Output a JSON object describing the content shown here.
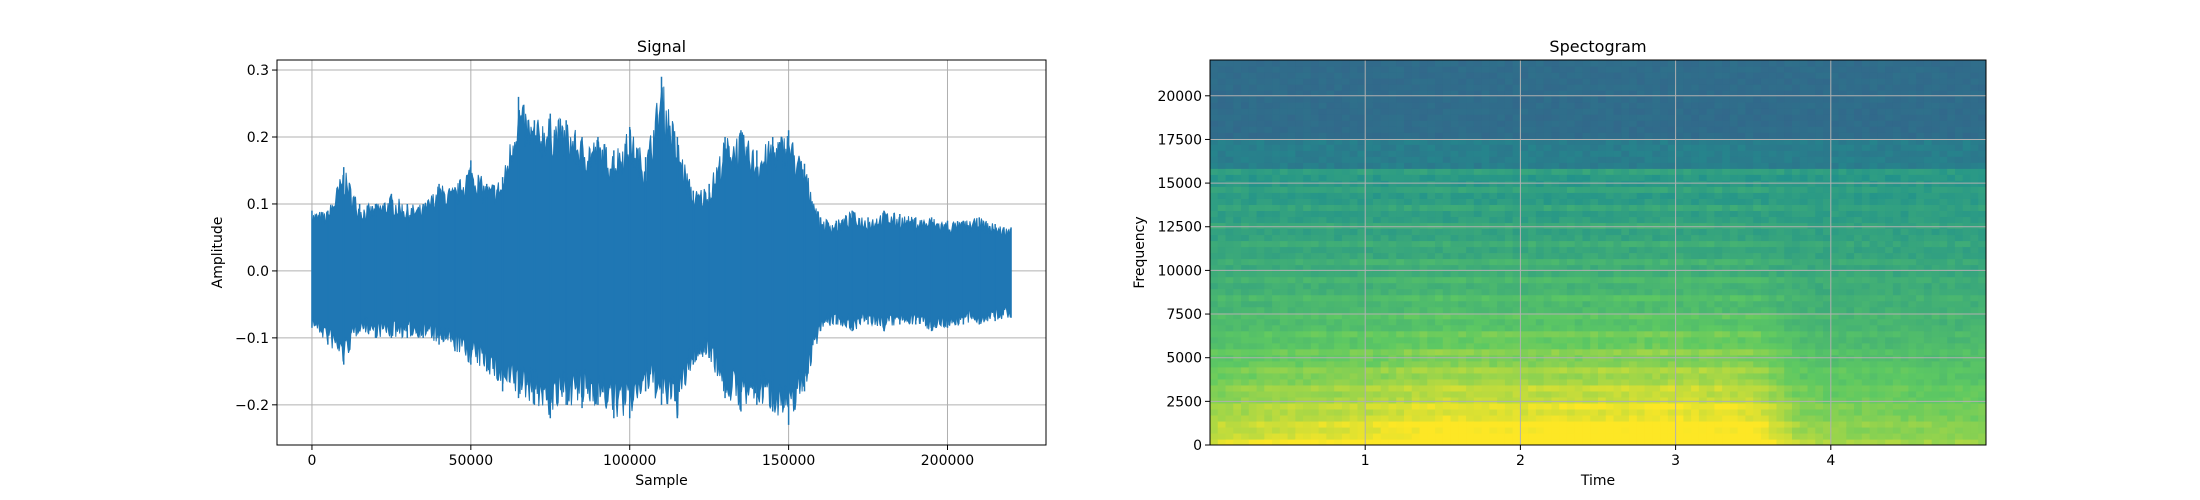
{
  "chart_data": [
    {
      "type": "line",
      "title": "Signal",
      "xlabel": "Sample",
      "ylabel": "Amplitude",
      "xlim": [
        -11000,
        231000
      ],
      "ylim": [
        -0.26,
        0.315
      ],
      "xticks": [
        0,
        50000,
        100000,
        150000,
        200000
      ],
      "yticks": [
        -0.2,
        -0.1,
        0.0,
        0.1,
        0.2,
        0.3
      ],
      "xtick_labels": [
        "0",
        "50000",
        "100000",
        "150000",
        "200000"
      ],
      "ytick_labels": [
        "−0.2",
        "−0.1",
        "0.0",
        "0.1",
        "0.2",
        "0.3"
      ],
      "grid": true,
      "color": "#1f77b4",
      "series": [
        {
          "x": [
            0,
            5000,
            10000,
            15000,
            20000,
            25000,
            30000,
            35000,
            40000,
            45000,
            50000,
            55000,
            60000,
            65000,
            70000,
            75000,
            80000,
            85000,
            90000,
            95000,
            100000,
            105000,
            110000,
            115000,
            120000,
            125000,
            130000,
            135000,
            140000,
            145000,
            150000,
            155000,
            160000,
            165000,
            170000,
            175000,
            180000,
            185000,
            190000,
            195000,
            200000,
            205000,
            210000,
            215000,
            220000
          ],
          "upper": [
            0.09,
            0.09,
            0.155,
            0.1,
            0.1,
            0.115,
            0.1,
            0.1,
            0.13,
            0.125,
            0.165,
            0.13,
            0.14,
            0.26,
            0.225,
            0.235,
            0.225,
            0.2,
            0.2,
            0.18,
            0.215,
            0.17,
            0.29,
            0.2,
            0.12,
            0.13,
            0.2,
            0.21,
            0.18,
            0.2,
            0.21,
            0.16,
            0.08,
            0.075,
            0.09,
            0.08,
            0.09,
            0.085,
            0.08,
            0.08,
            0.075,
            0.075,
            0.08,
            0.07,
            0.065
          ],
          "lower": [
            -0.085,
            -0.11,
            -0.14,
            -0.09,
            -0.1,
            -0.1,
            -0.1,
            -0.1,
            -0.11,
            -0.12,
            -0.14,
            -0.15,
            -0.18,
            -0.19,
            -0.2,
            -0.22,
            -0.2,
            -0.205,
            -0.2,
            -0.22,
            -0.22,
            -0.18,
            -0.2,
            -0.22,
            -0.14,
            -0.13,
            -0.19,
            -0.21,
            -0.2,
            -0.21,
            -0.23,
            -0.18,
            -0.09,
            -0.08,
            -0.09,
            -0.08,
            -0.09,
            -0.08,
            -0.08,
            -0.09,
            -0.085,
            -0.08,
            -0.08,
            -0.075,
            -0.07
          ]
        }
      ]
    },
    {
      "type": "heatmap",
      "title": "Spectogram",
      "xlabel": "Time",
      "ylabel": "Frequency",
      "xlim": [
        0.0,
        5.0
      ],
      "ylim": [
        0,
        22050
      ],
      "xticks": [
        1,
        2,
        3,
        4
      ],
      "yticks": [
        0,
        2500,
        5000,
        7500,
        10000,
        12500,
        15000,
        17500,
        20000
      ],
      "xtick_labels": [
        "1",
        "2",
        "3",
        "4"
      ],
      "ytick_labels": [
        "0",
        "2500",
        "5000",
        "7500",
        "10000",
        "12500",
        "15000",
        "17500",
        "20000"
      ],
      "grid": true,
      "colormap": "viridis",
      "activity_profile": {
        "times": [
          0.0,
          0.5,
          1.0,
          1.5,
          2.0,
          2.5,
          3.0,
          3.5,
          3.8,
          4.0,
          4.5,
          5.0
        ],
        "levels": [
          0.6,
          0.72,
          0.78,
          0.95,
          0.92,
          0.95,
          0.98,
          0.92,
          0.5,
          0.45,
          0.42,
          0.4
        ]
      },
      "cutoff_frequency": 16000
    }
  ]
}
